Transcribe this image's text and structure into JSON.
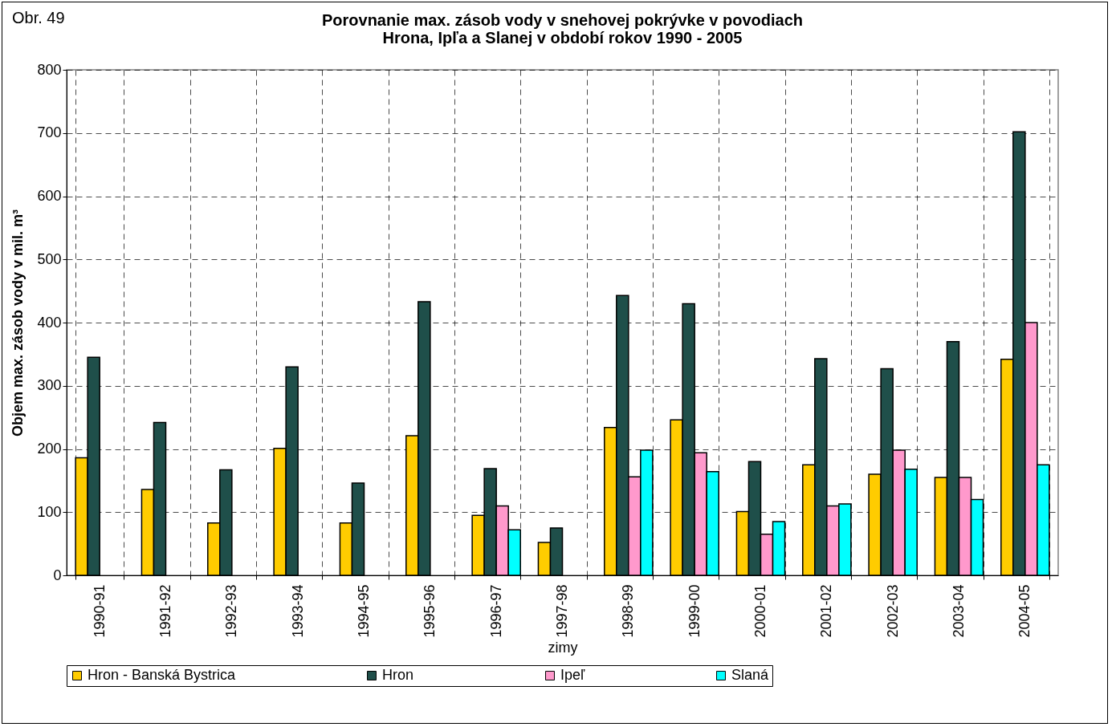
{
  "chart_data": {
    "type": "bar",
    "title": "Porovnanie max. zásob vody v snehovej pokrývke v povodiach\nHrona, Ipľa a Slanej v období rokov 1990 - 2005",
    "xlabel": "zimy",
    "ylabel": "Objem max. zásob vody v mil. m³",
    "annotations": [
      "Obr. 49"
    ],
    "categories": [
      "1990-91",
      "1991-92",
      "1992-93",
      "1993-94",
      "1994-95",
      "1995-96",
      "1996-97",
      "1997-98",
      "1998-99",
      "1999-00",
      "2000-01",
      "2001-02",
      "2002-03",
      "2003-04",
      "2004-05"
    ],
    "series": [
      {
        "name": "Hron - Banská Bystrica",
        "color": "#ffcc00",
        "values": [
          186,
          136,
          83,
          201,
          83,
          221,
          95,
          52,
          234,
          246,
          101,
          175,
          160,
          155,
          342
        ]
      },
      {
        "name": "Hron",
        "color": "#1f4f4a",
        "values": [
          345,
          242,
          167,
          330,
          146,
          433,
          169,
          75,
          443,
          430,
          180,
          343,
          327,
          370,
          702
        ]
      },
      {
        "name": "Ipeľ",
        "color": "#ff99cc",
        "values": [
          null,
          null,
          null,
          null,
          null,
          null,
          110,
          null,
          156,
          194,
          65,
          110,
          198,
          155,
          400
        ]
      },
      {
        "name": "Slaná",
        "color": "#00ffff",
        "values": [
          null,
          null,
          null,
          null,
          null,
          null,
          72,
          null,
          198,
          164,
          85,
          113,
          168,
          120,
          175
        ]
      }
    ],
    "ylim": [
      0,
      800
    ],
    "yticks": [
      0,
      100,
      200,
      300,
      400,
      500,
      600,
      700,
      800
    ],
    "grid": true,
    "legend": "bottom"
  }
}
